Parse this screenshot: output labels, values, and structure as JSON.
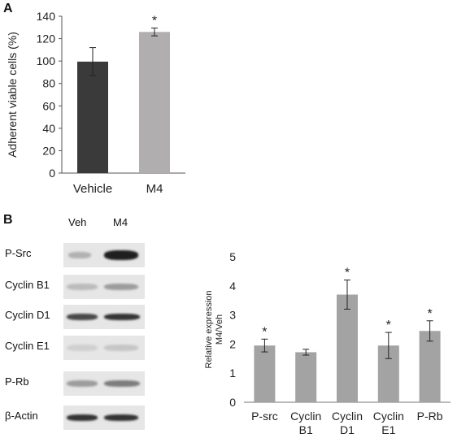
{
  "panelA": {
    "letter": "A",
    "chart_data": {
      "type": "bar",
      "categories": [
        "Vehicle",
        "M4"
      ],
      "values": [
        99.5,
        126
      ],
      "errors": [
        12.5,
        3.5
      ],
      "significant": [
        false,
        true
      ],
      "significance_mark": "*",
      "ylabel": "Adherent viable cells (%)",
      "ylim": [
        0,
        140
      ],
      "yticks": [
        "0",
        "20",
        "40",
        "60",
        "80",
        "100",
        "120",
        "140"
      ],
      "grid": false,
      "bar_colors": [
        "#3a3a3a",
        "#b0aeae"
      ]
    }
  },
  "panelB": {
    "letter": "B",
    "blot": {
      "lanes": [
        "Veh",
        "M4"
      ],
      "rows": [
        {
          "label": "P-Src"
        },
        {
          "label": "Cyclin B1"
        },
        {
          "label": "Cyclin D1"
        },
        {
          "label": "Cyclin E1"
        },
        {
          "label": "P-Rb"
        },
        {
          "label": "β-Actin"
        }
      ]
    },
    "chart_data": {
      "type": "bar",
      "categories": [
        "P-src",
        "Cyclin B1",
        "Cyclin D1",
        "Cyclin E1",
        "P-Rb"
      ],
      "category_lines": [
        [
          "P-src"
        ],
        [
          "Cyclin",
          "B1"
        ],
        [
          "Cyclin",
          "D1"
        ],
        [
          "Cyclin",
          "E1"
        ],
        [
          "P-Rb"
        ]
      ],
      "values": [
        1.95,
        1.72,
        3.7,
        1.95,
        2.45
      ],
      "errors": [
        0.22,
        0.1,
        0.5,
        0.45,
        0.35
      ],
      "significant": [
        true,
        false,
        true,
        true,
        true
      ],
      "significance_mark": "*",
      "ylabel_lines": [
        "Relative expression",
        "M4/Veh"
      ],
      "ylim": [
        0,
        5
      ],
      "yticks": [
        "0",
        "1",
        "2",
        "3",
        "4",
        "5"
      ],
      "grid": false,
      "bar_color": "#a3a3a3"
    }
  }
}
